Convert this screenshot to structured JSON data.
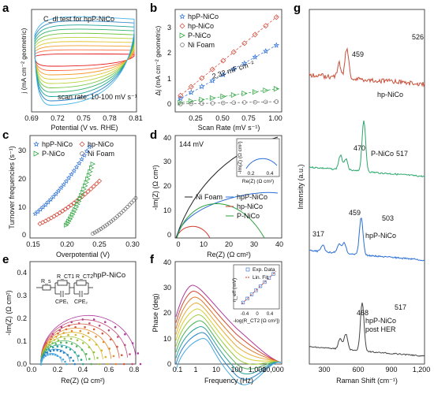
{
  "chart_data": [
    {
      "panel": "a",
      "type": "line",
      "title": "C_dl test for hpP-NiCo",
      "annotation": "scan rate: 10-100 mV s⁻¹",
      "xlabel": "Potential (V vs. RHE)",
      "ylabel": "j (mA cm⁻² geometric)",
      "xticks": [
        "0.69",
        "0.72",
        "0.75",
        "0.78",
        "0.81"
      ],
      "xlim": [
        0.69,
        0.81
      ],
      "scan_rates": [
        10,
        20,
        30,
        40,
        50,
        60,
        70,
        80,
        90,
        100
      ],
      "colors": [
        "#e41a1c",
        "#ff6a3d",
        "#f59b2a",
        "#e3c62e",
        "#b8d234",
        "#72c53f",
        "#35b46a",
        "#1fa39a",
        "#2f86c8",
        "#46b4e8"
      ]
    },
    {
      "panel": "b",
      "type": "scatter",
      "xlabel": "Scan Rate (mV s⁻¹)",
      "ylabel": "Δj (mA cm⁻² geometric)",
      "xticks": [
        "0.25",
        "0.50",
        "0.75",
        "1.00"
      ],
      "yticks": [
        "0",
        "1",
        "2",
        "3"
      ],
      "xlim": [
        0.05,
        1.05
      ],
      "ylim": [
        -0.3,
        3.7
      ],
      "annotation": "2.32 mF cm⁻²",
      "series": [
        {
          "name": "hpP-NiCo",
          "marker": "star",
          "color": "#2b6fd6",
          "x": [
            0.1,
            0.2,
            0.3,
            0.4,
            0.5,
            0.6,
            0.7,
            0.8,
            0.9,
            1.0
          ],
          "y": [
            0.22,
            0.46,
            0.69,
            0.92,
            1.15,
            1.38,
            1.6,
            1.84,
            2.07,
            2.3
          ]
        },
        {
          "name": "hp-NiCo",
          "marker": "diamond",
          "color": "#d23b2b",
          "x": [
            0.1,
            0.2,
            0.3,
            0.4,
            0.5,
            0.6,
            0.7,
            0.8,
            0.9,
            1.0
          ],
          "y": [
            0.34,
            0.68,
            1.02,
            1.36,
            1.7,
            2.04,
            2.38,
            2.72,
            3.06,
            3.4
          ]
        },
        {
          "name": "P-NiCo",
          "marker": "triangle",
          "color": "#27a33a",
          "x": [
            0.1,
            0.2,
            0.3,
            0.4,
            0.5,
            0.6,
            0.7,
            0.8,
            0.9,
            1.0
          ],
          "y": [
            0.06,
            0.12,
            0.18,
            0.24,
            0.3,
            0.36,
            0.42,
            0.48,
            0.54,
            0.6
          ]
        },
        {
          "name": "Ni Foam",
          "marker": "circle",
          "color": "#666666",
          "x": [
            0.1,
            0.2,
            0.3,
            0.4,
            0.5,
            0.6,
            0.7,
            0.8,
            0.9,
            1.0
          ],
          "y": [
            0.01,
            0.02,
            0.03,
            0.04,
            0.05,
            0.06,
            0.07,
            0.08,
            0.09,
            0.1
          ]
        }
      ]
    },
    {
      "panel": "c",
      "type": "scatter",
      "xlabel": "Overpotential (V)",
      "ylabel": "Turnover frequencies (s⁻¹)",
      "xticks": [
        "0.15",
        "0.20",
        "0.25",
        "0.30"
      ],
      "yticks": [
        "0",
        "10",
        "20",
        "30"
      ],
      "xlim": [
        0.15,
        0.31
      ],
      "ylim": [
        0,
        36
      ],
      "series": [
        {
          "name": "hpP-NiCo",
          "marker": "star",
          "color": "#2b6fd6",
          "x0": 0.158,
          "x1": 0.24,
          "y0": 8.5,
          "y1": 32
        },
        {
          "name": "hp-NiCo",
          "marker": "diamond",
          "color": "#d23b2b",
          "x0": 0.165,
          "x1": 0.255,
          "y0": 5,
          "y1": 20
        },
        {
          "name": "P-NiCo",
          "marker": "triangle",
          "color": "#27a33a",
          "x0": 0.205,
          "x1": 0.245,
          "y0": 4.5,
          "y1": 26
        },
        {
          "name": "Ni Foam",
          "marker": "circle",
          "color": "#666666",
          "x0": 0.245,
          "x1": 0.31,
          "y0": 1.5,
          "y1": 14
        }
      ]
    },
    {
      "panel": "d",
      "type": "line",
      "annotation": "144 mV",
      "xlabel": "Re(Z) (Ω cm²)",
      "ylabel": "-Im(Z) (Ω cm²)",
      "xticks": [
        "0",
        "10",
        "20",
        "30",
        "40"
      ],
      "yticks": [
        "0",
        "10",
        "20",
        "30",
        "40"
      ],
      "xlim": [
        0,
        41
      ],
      "ylim": [
        0,
        42
      ],
      "inset": {
        "xlabel": "Re(Z) (Ω cm²)",
        "ylabel": "-Im(Z) (Ω cm²)",
        "xticks": [
          "0.2",
          "0.4"
        ],
        "yticks": [
          "0.0",
          "0.1"
        ]
      },
      "series": [
        {
          "name": "Ni Foam",
          "color": "#222222"
        },
        {
          "name": "hpP-NiCo",
          "color": "#2b6fd6"
        },
        {
          "name": "hp-NiCo",
          "color": "#d23b2b"
        },
        {
          "name": "P-NiCo",
          "color": "#27a33a"
        }
      ]
    },
    {
      "panel": "e",
      "type": "scatter",
      "title": "hpP-NiCo",
      "circuit_labels": [
        "R_s",
        "R_CT1",
        "R_CT2",
        "CPE₁",
        "CPE₂"
      ],
      "xlabel": "Re(Z) (Ω cm²)",
      "ylabel": "-Im(Z) (Ω cm²)",
      "xticks": [
        "0.0",
        "0.2",
        "0.4",
        "0.6",
        "0.8"
      ],
      "yticks": [
        "0.0",
        "0.1",
        "0.2",
        "0.3",
        "0.4"
      ],
      "xlim": [
        0,
        0.8
      ],
      "ylim": [
        0,
        0.45
      ]
    },
    {
      "panel": "f",
      "type": "line",
      "xlabel": "Frequency (Hz)",
      "ylabel": "Phase (deg)",
      "xticks": [
        "0.1",
        "1",
        "10",
        "100",
        "1,000",
        "10,000"
      ],
      "yticks": [
        "0",
        "10",
        "20",
        "30",
        "40"
      ],
      "xscale": "log",
      "xlim": [
        0.1,
        10000
      ],
      "ylim": [
        0,
        40
      ],
      "inset": {
        "legend": [
          "Exp. Data",
          "Lin. Fit"
        ],
        "xlabel": "-log(R_CT2 [Ω cm²])",
        "ylabel": "η_eff (mV)",
        "xticks": [
          "-0.4",
          "0",
          "0.4"
        ],
        "yticks": [
          "0.12",
          "0.14",
          "0.16"
        ]
      }
    },
    {
      "panel": "g",
      "type": "line",
      "xlabel": "Raman Shift (cm⁻¹)",
      "ylabel": "Intensity (a.u.)",
      "xticks": [
        "300",
        "600",
        "900",
        "1,200"
      ],
      "xlim": [
        200,
        1200
      ],
      "series": [
        {
          "name": "hp-NiCo",
          "color": "#c8503a",
          "peaks": [
            "459",
            "526"
          ]
        },
        {
          "name": "P-NiCo",
          "color": "#2aa86a",
          "peaks": [
            "470",
            "517",
            "673"
          ]
        },
        {
          "name": "hpP-NiCo",
          "color": "#2b6fd6",
          "peaks": [
            "317",
            "459",
            "503",
            "650"
          ]
        },
        {
          "name": "hpP-NiCo post HER",
          "color": "#444444",
          "peaks": [
            "468",
            "517",
            "659"
          ]
        }
      ]
    }
  ],
  "panel_labels": [
    "a",
    "b",
    "c",
    "d",
    "e",
    "f",
    "g"
  ]
}
